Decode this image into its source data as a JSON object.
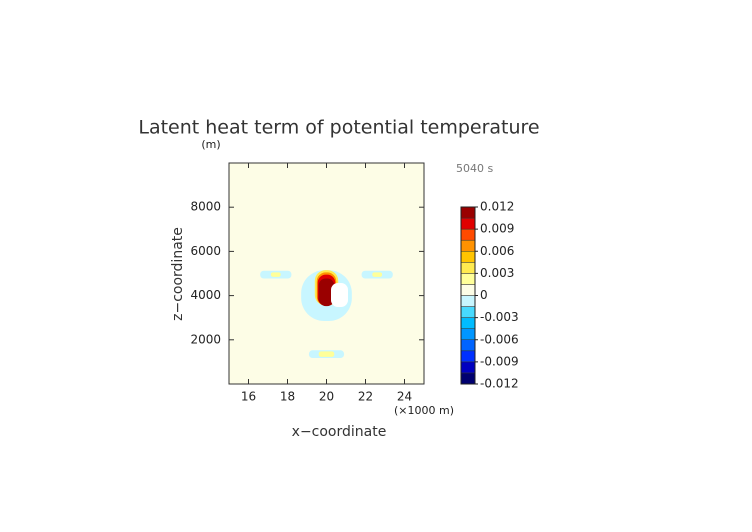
{
  "chart_data": {
    "type": "contour",
    "title": "Latent heat term of potential temperature",
    "y_unit": "(m)",
    "x_unit": "(×1000 m)",
    "time_label": "5040 s",
    "x_label": "x−coordinate",
    "y_label": "z−coordinate",
    "xlim": [
      15,
      25
    ],
    "xticks": [
      16,
      18,
      20,
      22,
      24
    ],
    "ylim": [
      0,
      10000
    ],
    "yticks": [
      2000,
      4000,
      6000,
      8000
    ],
    "background_value": 0.0005,
    "features": [
      {
        "x": 17.4,
        "y": 4950,
        "w": 1.6,
        "h": 350,
        "value": -0.0005
      },
      {
        "x": 22.6,
        "y": 4950,
        "w": 1.6,
        "h": 350,
        "value": -0.0005
      },
      {
        "x": 17.4,
        "y": 4950,
        "w": 0.5,
        "h": 200,
        "value": 0.003
      },
      {
        "x": 22.6,
        "y": 4950,
        "w": 0.5,
        "h": 200,
        "value": 0.003
      },
      {
        "x": 20,
        "y": 1350,
        "w": 1.8,
        "h": 350,
        "value": -0.0005
      },
      {
        "x": 20,
        "y": 1350,
        "w": 0.8,
        "h": 250,
        "value": 0.003
      },
      {
        "x": 20,
        "y": 4000,
        "w": 2.6,
        "h": 2300,
        "value": -0.0005
      },
      {
        "x": 20,
        "y": 4350,
        "w": 1.2,
        "h": 1600,
        "value": 0.0045
      },
      {
        "x": 20,
        "y": 4300,
        "w": 1.0,
        "h": 1500,
        "value": 0.0075
      },
      {
        "x": 20,
        "y": 4250,
        "w": 0.9,
        "h": 1400,
        "value": 0.0105
      },
      {
        "x": 20,
        "y": 4150,
        "w": 0.8,
        "h": 1250,
        "value": 0.012
      }
    ],
    "levels": [
      -0.012,
      -0.0105,
      -0.009,
      -0.0075,
      -0.006,
      -0.0045,
      -0.003,
      -0.0015,
      0,
      0.0015,
      0.003,
      0.0045,
      0.006,
      0.0075,
      0.009,
      0.0105,
      0.012
    ],
    "colors": [
      "#000070",
      "#0000c0",
      "#0030ff",
      "#0064ff",
      "#0096ff",
      "#00bcff",
      "#48daff",
      "#c8f6ff",
      "#fdfde6",
      "#ffff9a",
      "#ffea50",
      "#ffc400",
      "#ff9200",
      "#ff4a00",
      "#e00000",
      "#9a0000"
    ],
    "colorbar_ticks": [
      0.012,
      0.009,
      0.006,
      0.003,
      0,
      -0.003,
      -0.006,
      -0.009,
      -0.012
    ]
  }
}
